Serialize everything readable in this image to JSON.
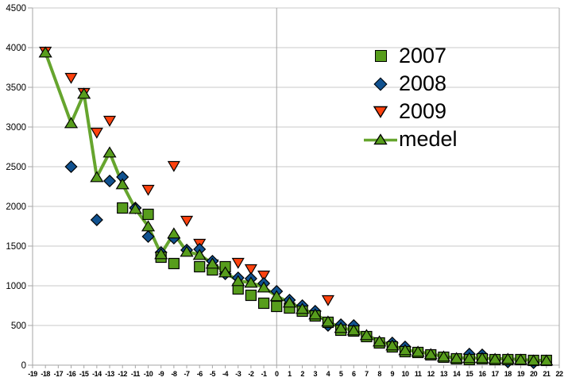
{
  "chart_data": {
    "type": "scatter",
    "title": "",
    "xlabel": "",
    "ylabel": "",
    "xlim": [
      -19,
      22
    ],
    "ylim": [
      0,
      4500
    ],
    "x_tick_step": 1,
    "y_tick_step": 500,
    "grid": {
      "horizontal": true,
      "vertical_lines_at_x": [
        -19,
        0,
        22
      ]
    },
    "legend": {
      "position": "top-right",
      "entries": [
        "2007",
        "2008",
        "2009",
        "medel"
      ]
    },
    "colors": {
      "green": "#579D1C",
      "line_green": "#66A52E",
      "blue": "#10518F",
      "red": "#FF420E",
      "gridline": "#C9C9C9",
      "axis": "#A6A6A6",
      "text": "#000000"
    },
    "series": [
      {
        "name": "2007",
        "marker": "square",
        "color": "#579D1C",
        "has_line": false,
        "points": [
          [
            -12,
            1980
          ],
          [
            -10,
            1900
          ],
          [
            -9,
            1360
          ],
          [
            -8,
            1280
          ],
          [
            -6,
            1240
          ],
          [
            -5,
            1200
          ],
          [
            -4,
            1240
          ],
          [
            -3,
            960
          ],
          [
            -2,
            880
          ],
          [
            -1,
            780
          ],
          [
            0,
            740
          ],
          [
            1,
            720
          ],
          [
            2,
            680
          ],
          [
            3,
            620
          ],
          [
            4,
            540
          ],
          [
            5,
            440
          ],
          [
            6,
            430
          ],
          [
            7,
            360
          ],
          [
            8,
            280
          ],
          [
            9,
            230
          ],
          [
            10,
            170
          ],
          [
            11,
            160
          ],
          [
            12,
            130
          ],
          [
            13,
            100
          ],
          [
            14,
            80
          ],
          [
            15,
            70
          ],
          [
            16,
            80
          ],
          [
            17,
            70
          ],
          [
            18,
            70
          ],
          [
            19,
            70
          ],
          [
            20,
            60
          ],
          [
            21,
            60
          ]
        ]
      },
      {
        "name": "2008",
        "marker": "diamond",
        "color": "#10518F",
        "has_line": false,
        "points": [
          [
            -16,
            2500
          ],
          [
            -14,
            1830
          ],
          [
            -13,
            2320
          ],
          [
            -12,
            2370
          ],
          [
            -11,
            1980
          ],
          [
            -10,
            1620
          ],
          [
            -9,
            1420
          ],
          [
            -8,
            1600
          ],
          [
            -7,
            1450
          ],
          [
            -6,
            1460
          ],
          [
            -5,
            1310
          ],
          [
            -4,
            1150
          ],
          [
            -3,
            1100
          ],
          [
            -2,
            1090
          ],
          [
            -1,
            1030
          ],
          [
            0,
            930
          ],
          [
            1,
            820
          ],
          [
            2,
            750
          ],
          [
            3,
            680
          ],
          [
            4,
            500
          ],
          [
            5,
            510
          ],
          [
            6,
            500
          ],
          [
            9,
            280
          ],
          [
            10,
            230
          ],
          [
            15,
            140
          ],
          [
            16,
            130
          ],
          [
            18,
            40
          ],
          [
            20,
            30
          ]
        ]
      },
      {
        "name": "2009",
        "marker": "triangle-down",
        "color": "#FF420E",
        "has_line": false,
        "points": [
          [
            -18,
            3950
          ],
          [
            -16,
            3620
          ],
          [
            -15,
            3430
          ],
          [
            -14,
            2930
          ],
          [
            -13,
            3080
          ],
          [
            -10,
            2210
          ],
          [
            -8,
            2510
          ],
          [
            -7,
            1820
          ],
          [
            -6,
            1530
          ],
          [
            -5,
            1270
          ],
          [
            -3,
            1290
          ],
          [
            -2,
            1210
          ],
          [
            -1,
            1130
          ],
          [
            4,
            820
          ]
        ]
      },
      {
        "name": "medel",
        "marker": "triangle-up",
        "color": "#579D1C",
        "has_line": true,
        "line_color": "#66A52E",
        "points": [
          [
            -18,
            3940
          ],
          [
            -16,
            3050
          ],
          [
            -15,
            3420
          ],
          [
            -14,
            2370
          ],
          [
            -13,
            2680
          ],
          [
            -12,
            2280
          ],
          [
            -11,
            1970
          ],
          [
            -10,
            1750
          ],
          [
            -9,
            1400
          ],
          [
            -8,
            1660
          ],
          [
            -7,
            1430
          ],
          [
            -6,
            1390
          ],
          [
            -5,
            1280
          ],
          [
            -4,
            1170
          ],
          [
            -3,
            1060
          ],
          [
            -2,
            1040
          ],
          [
            -1,
            980
          ],
          [
            0,
            870
          ],
          [
            1,
            790
          ],
          [
            2,
            710
          ],
          [
            3,
            640
          ],
          [
            4,
            550
          ],
          [
            5,
            470
          ],
          [
            6,
            440
          ],
          [
            7,
            380
          ],
          [
            8,
            300
          ],
          [
            9,
            250
          ],
          [
            10,
            190
          ],
          [
            11,
            170
          ],
          [
            12,
            140
          ],
          [
            13,
            110
          ],
          [
            14,
            90
          ],
          [
            15,
            90
          ],
          [
            16,
            90
          ],
          [
            17,
            80
          ],
          [
            18,
            80
          ],
          [
            19,
            70
          ],
          [
            20,
            60
          ],
          [
            21,
            60
          ]
        ]
      }
    ]
  }
}
